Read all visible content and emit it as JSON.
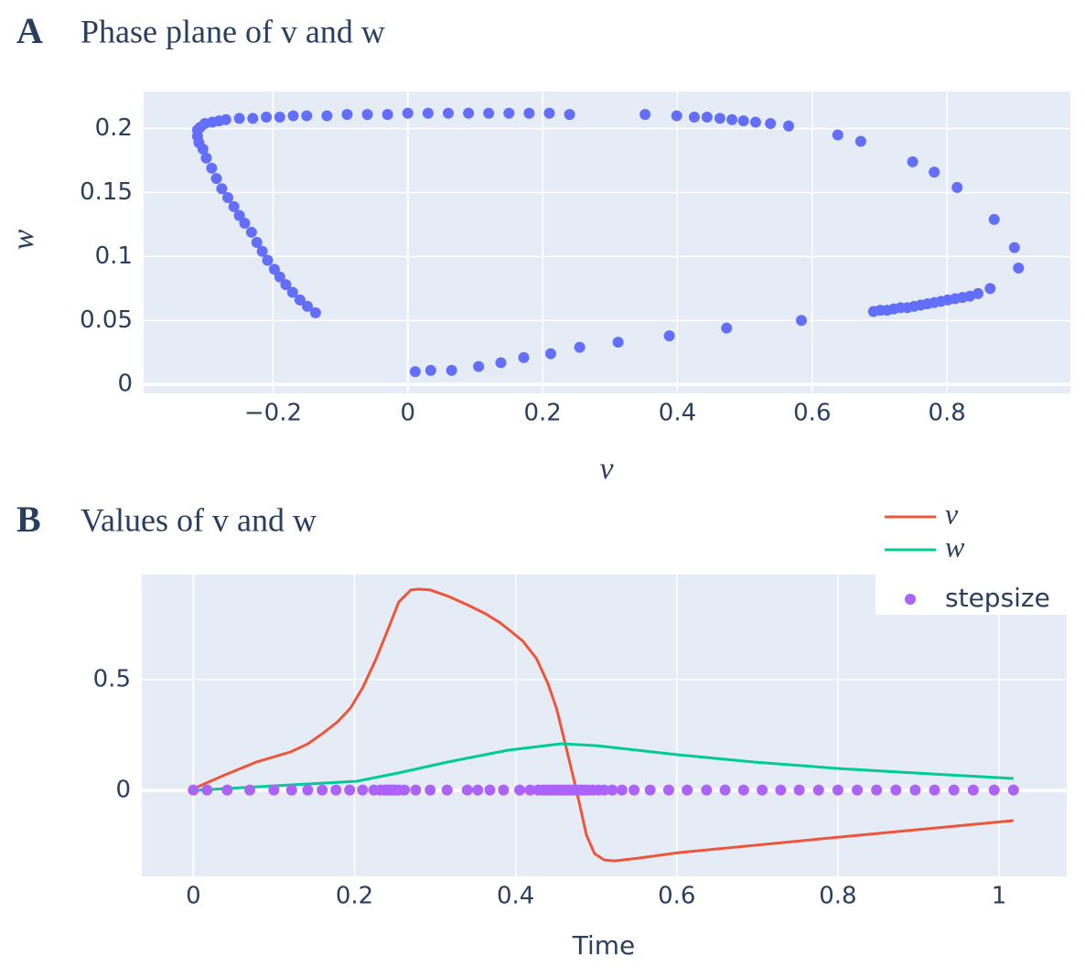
{
  "chart_data": [
    {
      "type": "scatter",
      "panel": "A",
      "title": "Phase plane of v and w",
      "x_label": "v",
      "y_label": "w",
      "color": "#636EFA",
      "grid": true,
      "x": [
        -0.312,
        -0.308,
        -0.301,
        -0.29,
        -0.28,
        -0.27,
        -0.25,
        -0.23,
        -0.21,
        -0.19,
        -0.17,
        -0.15,
        -0.12,
        -0.09,
        -0.06,
        -0.03,
        0,
        0.03,
        0.06,
        0.09,
        0.12,
        0.15,
        0.18,
        0.21,
        0.24,
        0.352,
        0.399,
        0.425,
        0.444,
        0.463,
        0.481,
        0.498,
        0.516,
        0.538,
        0.565,
        0.638,
        0.672,
        0.749,
        0.781,
        0.815,
        0.87,
        0.9,
        0.906,
        0.864,
        0.846,
        0.834,
        0.823,
        0.812,
        0.801,
        0.791,
        0.781,
        0.771,
        0.761,
        0.751,
        0.741,
        0.731,
        0.721,
        0.711,
        0.701,
        0.691,
        0.584,
        0.473,
        0.388,
        0.312,
        0.255,
        0.212,
        0.172,
        0.138,
        0.105,
        0.065,
        0.034,
        0.011,
        -0.137,
        -0.149,
        -0.16,
        -0.171,
        -0.181,
        -0.19,
        -0.198,
        -0.208,
        -0.216,
        -0.224,
        -0.232,
        -0.242,
        -0.25,
        -0.258,
        -0.267,
        -0.276,
        -0.284,
        -0.291,
        -0.299,
        -0.304,
        -0.31,
        -0.312
      ],
      "values": [
        0.199,
        0.201,
        0.204,
        0.205,
        0.206,
        0.207,
        0.208,
        0.208,
        0.209,
        0.209,
        0.21,
        0.21,
        0.21,
        0.211,
        0.211,
        0.211,
        0.212,
        0.212,
        0.212,
        0.212,
        0.212,
        0.212,
        0.212,
        0.212,
        0.211,
        0.211,
        0.21,
        0.209,
        0.209,
        0.208,
        0.207,
        0.206,
        0.205,
        0.204,
        0.202,
        0.195,
        0.19,
        0.174,
        0.166,
        0.154,
        0.129,
        0.107,
        0.091,
        0.075,
        0.071,
        0.069,
        0.068,
        0.067,
        0.066,
        0.065,
        0.064,
        0.063,
        0.062,
        0.061,
        0.06,
        0.06,
        0.059,
        0.058,
        0.058,
        0.057,
        0.05,
        0.044,
        0.038,
        0.033,
        0.029,
        0.024,
        0.021,
        0.017,
        0.014,
        0.011,
        0.011,
        0.01,
        0.056,
        0.061,
        0.066,
        0.072,
        0.078,
        0.084,
        0.09,
        0.097,
        0.104,
        0.111,
        0.119,
        0.126,
        0.132,
        0.139,
        0.146,
        0.153,
        0.161,
        0.169,
        0.177,
        0.184,
        0.189,
        0.194
      ],
      "xlim": [
        -0.392,
        0.983
      ],
      "ylim": [
        -0.007,
        0.229
      ],
      "xticks": [
        {
          "value": -0.2,
          "label": "−0.2"
        },
        0,
        0.2,
        0.4,
        0.6,
        0.8
      ],
      "yticks": [
        0,
        0.05,
        0.1,
        0.15,
        0.2
      ]
    },
    {
      "type": "line",
      "panel": "B",
      "title": "Values of v and w",
      "x_label": "Time",
      "grid": true,
      "legend": "top right",
      "series": [
        {
          "name": "v",
          "type": "line",
          "color": "#EF553B",
          "x": [
            0,
            0.039,
            0.078,
            0.121,
            0.142,
            0.16,
            0.179,
            0.195,
            0.21,
            0.226,
            0.242,
            0.255,
            0.27,
            0.28,
            0.294,
            0.317,
            0.342,
            0.363,
            0.381,
            0.394,
            0.409,
            0.426,
            0.44,
            0.451,
            0.463,
            0.476,
            0.488,
            0.498,
            0.51,
            0.523,
            0.552,
            0.602,
            0.801,
            1.018
          ],
          "values": [
            0.008,
            0.07,
            0.128,
            0.174,
            0.21,
            0.256,
            0.31,
            0.372,
            0.463,
            0.587,
            0.731,
            0.851,
            0.905,
            0.909,
            0.905,
            0.876,
            0.835,
            0.797,
            0.756,
            0.719,
            0.674,
            0.595,
            0.483,
            0.368,
            0.19,
            -0.008,
            -0.202,
            -0.285,
            -0.314,
            -0.318,
            -0.306,
            -0.281,
            -0.211,
            -0.136
          ]
        },
        {
          "name": "w",
          "type": "line",
          "color": "#00CC96",
          "x": [
            0,
            0.039,
            0.101,
            0.202,
            0.255,
            0.315,
            0.391,
            0.457,
            0.502,
            0.602,
            0.697,
            0.801,
            0.918,
            1.018
          ],
          "values": [
            0,
            0.008,
            0.021,
            0.041,
            0.079,
            0.128,
            0.182,
            0.211,
            0.202,
            0.161,
            0.128,
            0.099,
            0.074,
            0.054
          ]
        },
        {
          "name": "stepsize",
          "type": "scatter",
          "color": "#AB63FA",
          "x": [
            0,
            0.017,
            0.042,
            0.07,
            0.1,
            0.122,
            0.142,
            0.16,
            0.177,
            0.194,
            0.21,
            0.224,
            0.232,
            0.238,
            0.241,
            0.244,
            0.247,
            0.25,
            0.255,
            0.262,
            0.276,
            0.294,
            0.315,
            0.34,
            0.353,
            0.368,
            0.385,
            0.405,
            0.418,
            0.428,
            0.434,
            0.438,
            0.442,
            0.446,
            0.45,
            0.454,
            0.458,
            0.462,
            0.466,
            0.47,
            0.474,
            0.478,
            0.482,
            0.486,
            0.49,
            0.496,
            0.503,
            0.51,
            0.52,
            0.532,
            0.547,
            0.567,
            0.59,
            0.613,
            0.637,
            0.66,
            0.683,
            0.706,
            0.729,
            0.752,
            0.776,
            0.8,
            0.824,
            0.848,
            0.872,
            0.896,
            0.92,
            0.944,
            0.968,
            0.994,
            1.018
          ],
          "values": [
            0.002,
            0.002,
            0.002,
            0.002,
            0.002,
            0.002,
            0.002,
            0.002,
            0.002,
            0.002,
            0.002,
            0.002,
            0.002,
            0.002,
            0.002,
            0.002,
            0.002,
            0.002,
            0.002,
            0.002,
            0.002,
            0.002,
            0.002,
            0.002,
            0.002,
            0.002,
            0.002,
            0.002,
            0.002,
            0.002,
            0.002,
            0.002,
            0.002,
            0.002,
            0.002,
            0.002,
            0.002,
            0.002,
            0.002,
            0.002,
            0.002,
            0.002,
            0.002,
            0.002,
            0.002,
            0.002,
            0.002,
            0.002,
            0.002,
            0.002,
            0.002,
            0.002,
            0.002,
            0.002,
            0.002,
            0.002,
            0.002,
            0.002,
            0.002,
            0.002,
            0.002,
            0.002,
            0.002,
            0.002,
            0.002,
            0.002,
            0.002,
            0.002,
            0.002,
            0.002,
            0.002
          ]
        }
      ],
      "xlim": [
        -0.064,
        1.084
      ],
      "ylim": [
        -0.388,
        0.975
      ],
      "xticks": [
        0,
        0.2,
        0.4,
        0.6,
        0.8,
        1
      ],
      "yticks": [
        0,
        0.5
      ]
    }
  ]
}
